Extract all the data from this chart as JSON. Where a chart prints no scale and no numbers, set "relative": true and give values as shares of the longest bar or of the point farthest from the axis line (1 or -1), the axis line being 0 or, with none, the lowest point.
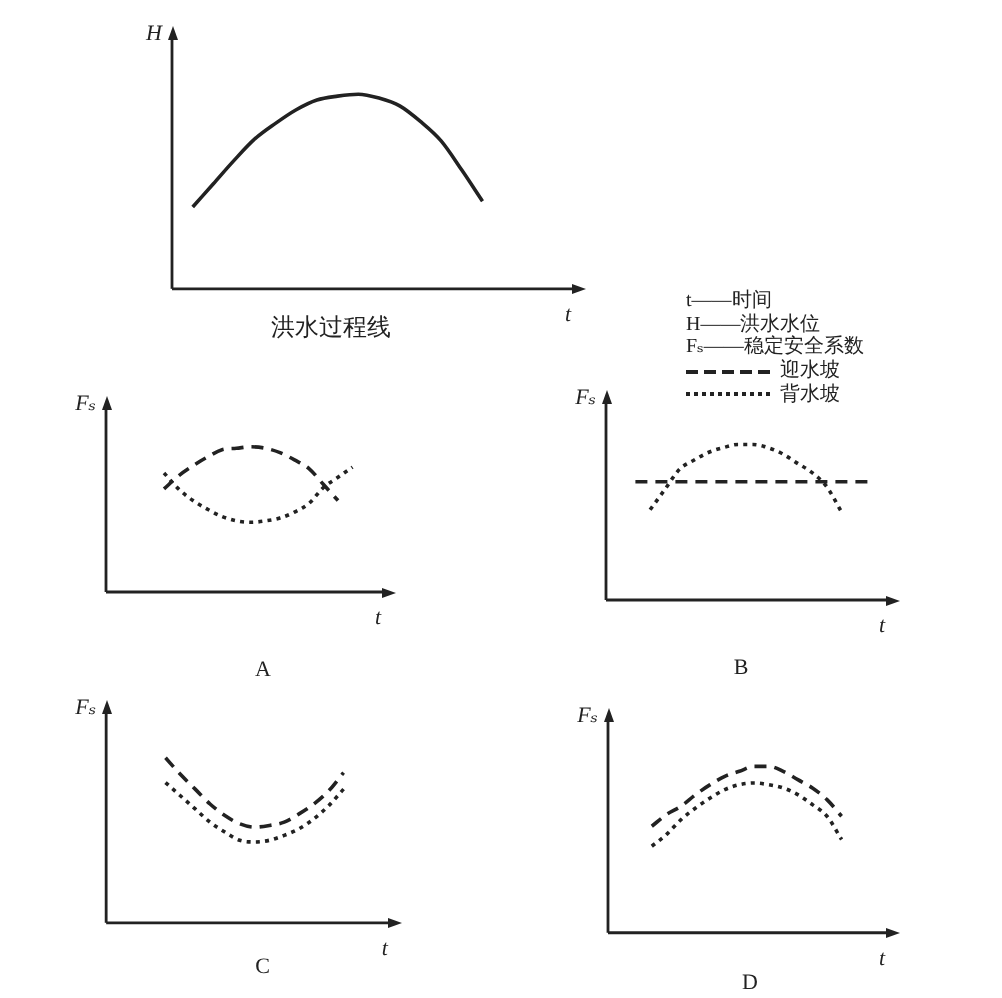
{
  "chart_data": [
    {
      "type": "line",
      "title": "洪水过程线",
      "xlabel": "t",
      "ylabel": "H",
      "relative": true,
      "categories": [
        null,
        null,
        null,
        null,
        null,
        null,
        null,
        null,
        null,
        null,
        null,
        null,
        null,
        null,
        null,
        null,
        null,
        null,
        null,
        null,
        null
      ],
      "series": [
        {
          "color": "#222222",
          "values": [
            null,
            0.42,
            0.54,
            0.66,
            0.77,
            0.85,
            0.92,
            0.97,
            0.99,
            1,
            0.98,
            0.94,
            0.86,
            0.76,
            0.61,
            0.45,
            null,
            null,
            null,
            null,
            null
          ]
        }
      ],
      "annotations": [
        "t——时间",
        "H——洪水水位",
        "Fₛ——稳定安全系数"
      ]
    },
    {
      "type": "line",
      "title": "A",
      "xlabel": "t",
      "ylabel": "Fₛ",
      "relative": true,
      "legend": "top right",
      "categories": [
        null,
        null,
        null,
        null,
        null,
        null,
        null,
        null,
        null,
        null,
        null,
        null,
        null,
        null,
        null,
        null,
        null,
        null,
        null,
        null,
        null
      ],
      "series": [
        {
          "name": "迎水坡",
          "color": "#222222",
          "line_style": "dashed",
          "values": [
            null,
            null,
            null,
            null,
            0.71,
            0.8,
            0.87,
            0.93,
            0.98,
            0.99,
            1,
            0.99,
            0.96,
            0.91,
            0.85,
            0.74,
            0.63,
            null,
            null,
            null,
            null
          ]
        },
        {
          "name": "背水坡",
          "color": "#222222",
          "line_style": "dotted",
          "values": [
            null,
            null,
            null,
            null,
            0.82,
            0.71,
            0.63,
            0.57,
            0.52,
            0.49,
            0.48,
            0.49,
            0.51,
            0.55,
            0.61,
            0.72,
            0.79,
            0.86,
            null,
            null,
            null
          ]
        }
      ]
    },
    {
      "type": "line",
      "title": "B",
      "xlabel": "t",
      "ylabel": "Fₛ",
      "relative": true,
      "categories": [
        null,
        null,
        null,
        null,
        null,
        null,
        null,
        null,
        null,
        null,
        null,
        null,
        null,
        null,
        null,
        null,
        null,
        null,
        null,
        null,
        null
      ],
      "series": [
        {
          "color": "#222222",
          "line_style": "dashed",
          "values": [
            null,
            null,
            0.76,
            0.76,
            0.76,
            0.76,
            0.76,
            0.76,
            0.76,
            0.76,
            0.76,
            0.76,
            0.76,
            0.76,
            0.76,
            0.76,
            0.76,
            0.76,
            0.76,
            null,
            null
          ]
        },
        {
          "color": "#222222",
          "line_style": "dotted",
          "values": [
            null,
            null,
            null,
            0.58,
            0.71,
            0.84,
            0.9,
            0.95,
            0.98,
            1,
            1,
            0.98,
            0.94,
            0.88,
            0.82,
            0.73,
            0.57,
            null,
            null,
            null,
            null
          ]
        }
      ]
    },
    {
      "type": "line",
      "title": "C",
      "xlabel": "t",
      "ylabel": "Fₛ",
      "relative": true,
      "categories": [
        null,
        null,
        null,
        null,
        null,
        null,
        null,
        null,
        null,
        null,
        null,
        null,
        null,
        null,
        null,
        null,
        null,
        null,
        null,
        null,
        null
      ],
      "series": [
        {
          "color": "#222222",
          "line_style": "dashed",
          "values": [
            null,
            null,
            null,
            null,
            1,
            0.9,
            0.81,
            0.72,
            0.65,
            0.6,
            0.58,
            0.59,
            0.61,
            0.66,
            0.72,
            0.8,
            0.91,
            null,
            null,
            null,
            null
          ]
        },
        {
          "color": "#222222",
          "line_style": "dotted",
          "values": [
            null,
            null,
            null,
            null,
            0.85,
            0.77,
            0.69,
            0.61,
            0.55,
            0.5,
            0.49,
            0.5,
            0.53,
            0.57,
            0.63,
            0.71,
            0.81,
            null,
            null,
            null,
            null
          ]
        }
      ]
    },
    {
      "type": "line",
      "title": "D",
      "xlabel": "t",
      "ylabel": "Fₛ",
      "relative": true,
      "categories": [
        null,
        null,
        null,
        null,
        null,
        null,
        null,
        null,
        null,
        null,
        null,
        null,
        null,
        null,
        null,
        null,
        null,
        null,
        null,
        null,
        null
      ],
      "series": [
        {
          "color": "#222222",
          "line_style": "dashed",
          "values": [
            null,
            null,
            null,
            0.64,
            0.71,
            0.76,
            0.83,
            0.89,
            0.94,
            0.97,
            1,
            1,
            0.97,
            0.92,
            0.87,
            0.8,
            0.7,
            null,
            null,
            null,
            null
          ]
        },
        {
          "color": "#222222",
          "line_style": "dotted",
          "values": [
            null,
            null,
            null,
            0.52,
            0.59,
            0.68,
            0.75,
            0.81,
            0.86,
            0.89,
            0.9,
            0.89,
            0.87,
            0.83,
            0.77,
            0.7,
            0.56,
            null,
            null,
            null,
            null
          ]
        }
      ]
    }
  ]
}
